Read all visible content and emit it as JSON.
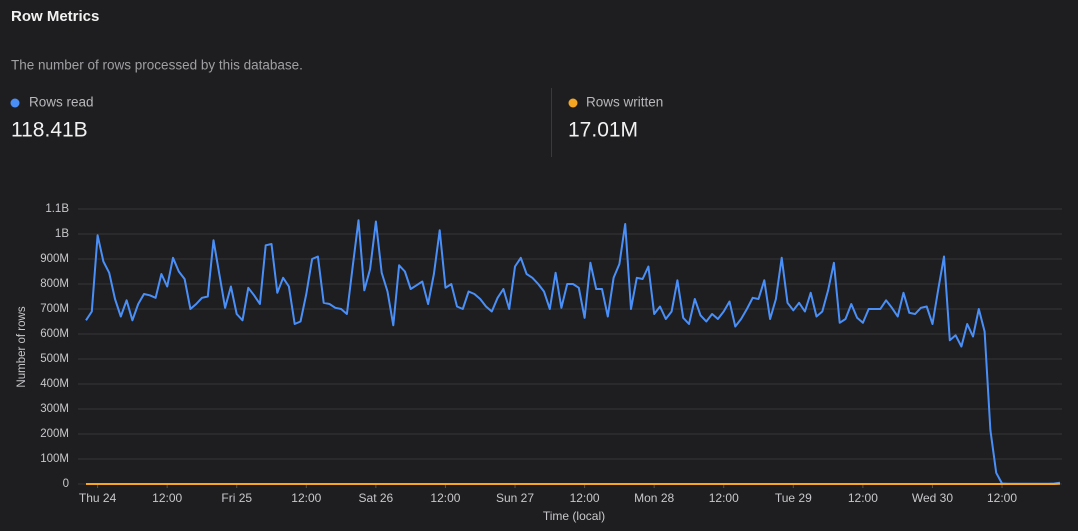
{
  "header": {
    "title": "Row Metrics",
    "subtitle": "The number of rows processed by this database."
  },
  "stats": [
    {
      "label": "Rows read",
      "value": "118.41B"
    },
    {
      "label": "Rows written",
      "value": "17.01M"
    }
  ],
  "chart_data": {
    "type": "line",
    "x_label": "Time (local)",
    "y_label": "Number of rows",
    "x": [
      -2,
      -1,
      0,
      1,
      2,
      3,
      4,
      5,
      6,
      7,
      8,
      9,
      10,
      11,
      12,
      13,
      14,
      15,
      16,
      17,
      18,
      19,
      20,
      21,
      22,
      23,
      24,
      25,
      26,
      27,
      28,
      29,
      30,
      31,
      32,
      33,
      34,
      35,
      36,
      37,
      38,
      39,
      40,
      41,
      42,
      43,
      44,
      45,
      46,
      47,
      48,
      49,
      50,
      51,
      52,
      53,
      54,
      55,
      56,
      57,
      58,
      59,
      60,
      61,
      62,
      63,
      64,
      65,
      66,
      67,
      68,
      69,
      70,
      71,
      72,
      73,
      74,
      75,
      76,
      77,
      78,
      79,
      80,
      81,
      82,
      83,
      84,
      85,
      86,
      87,
      88,
      89,
      90,
      91,
      92,
      93,
      94,
      95,
      96,
      97,
      98,
      99,
      100,
      101,
      102,
      103,
      104,
      105,
      106,
      107,
      108,
      109,
      110,
      111,
      112,
      113,
      114,
      115,
      116,
      117,
      118,
      119,
      120,
      121,
      122,
      123,
      124,
      125,
      126,
      127,
      128,
      129,
      130,
      131,
      132,
      133,
      134,
      135,
      136,
      137,
      138,
      139,
      140,
      141,
      142,
      143,
      144,
      145,
      146,
      147,
      148,
      149,
      150,
      151,
      152,
      153,
      154,
      155,
      156,
      157,
      158,
      159,
      160,
      161,
      162,
      163,
      164,
      165,
      166
    ],
    "series": [
      {
        "name": "Rows read",
        "color": "#4a8ff7",
        "values": [
          655000000,
          690000000,
          995000000,
          890000000,
          845000000,
          740000000,
          670000000,
          735000000,
          655000000,
          720000000,
          760000000,
          755000000,
          745000000,
          840000000,
          790000000,
          905000000,
          850000000,
          820000000,
          700000000,
          720000000,
          745000000,
          750000000,
          975000000,
          840000000,
          705000000,
          790000000,
          680000000,
          655000000,
          785000000,
          755000000,
          720000000,
          955000000,
          960000000,
          765000000,
          825000000,
          790000000,
          640000000,
          650000000,
          760000000,
          900000000,
          910000000,
          725000000,
          720000000,
          705000000,
          700000000,
          680000000,
          870000000,
          1055000000,
          775000000,
          860000000,
          1050000000,
          845000000,
          770000000,
          635000000,
          875000000,
          850000000,
          780000000,
          795000000,
          810000000,
          720000000,
          840000000,
          1015000000,
          785000000,
          800000000,
          710000000,
          700000000,
          770000000,
          760000000,
          740000000,
          710000000,
          690000000,
          745000000,
          780000000,
          700000000,
          870000000,
          905000000,
          840000000,
          825000000,
          800000000,
          770000000,
          700000000,
          845000000,
          705000000,
          800000000,
          800000000,
          785000000,
          665000000,
          885000000,
          780000000,
          780000000,
          670000000,
          825000000,
          880000000,
          1040000000,
          700000000,
          825000000,
          820000000,
          870000000,
          680000000,
          710000000,
          660000000,
          690000000,
          815000000,
          665000000,
          640000000,
          740000000,
          675000000,
          650000000,
          680000000,
          660000000,
          690000000,
          730000000,
          630000000,
          660000000,
          700000000,
          745000000,
          740000000,
          815000000,
          660000000,
          740000000,
          905000000,
          725000000,
          695000000,
          725000000,
          690000000,
          765000000,
          670000000,
          690000000,
          775000000,
          885000000,
          645000000,
          660000000,
          720000000,
          665000000,
          645000000,
          700000000,
          700000000,
          700000000,
          735000000,
          705000000,
          670000000,
          765000000,
          685000000,
          680000000,
          705000000,
          710000000,
          640000000,
          780000000,
          910000000,
          575000000,
          595000000,
          550000000,
          640000000,
          590000000,
          700000000,
          610000000,
          215000000,
          45000000,
          2000000,
          1000000,
          1000000,
          1000000,
          1000000,
          1000000,
          1000000,
          1000000,
          1000000,
          2000000,
          5000000
        ]
      },
      {
        "name": "Rows written",
        "color": "#f5a623",
        "values": [
          100000,
          100000,
          100000,
          100000,
          100000,
          100000,
          100000,
          100000,
          100000,
          100000,
          100000,
          100000,
          100000,
          100000,
          100000,
          100000,
          100000,
          100000,
          100000,
          100000,
          100000,
          100000,
          100000,
          100000,
          100000,
          100000,
          100000,
          100000,
          100000,
          100000,
          100000,
          100000,
          100000,
          100000,
          100000,
          100000,
          100000,
          100000,
          100000,
          100000,
          100000,
          100000,
          100000,
          100000,
          100000,
          100000,
          100000,
          100000,
          100000,
          100000,
          100000,
          100000,
          100000,
          100000,
          100000,
          100000,
          100000,
          100000,
          100000,
          100000,
          100000,
          100000,
          100000,
          100000,
          100000,
          100000,
          100000,
          100000,
          100000,
          100000,
          100000,
          100000,
          100000,
          100000,
          100000,
          100000,
          100000,
          100000,
          100000,
          100000,
          100000,
          100000,
          100000,
          100000,
          100000,
          100000,
          100000,
          100000,
          100000,
          100000,
          100000,
          100000,
          100000,
          100000,
          100000,
          100000,
          100000,
          100000,
          100000,
          100000,
          100000,
          100000,
          100000,
          100000,
          100000,
          100000,
          100000,
          100000,
          100000,
          100000,
          100000,
          100000,
          100000,
          100000,
          100000,
          100000,
          100000,
          100000,
          100000,
          100000,
          100000,
          100000,
          100000,
          100000,
          100000,
          100000,
          100000,
          100000,
          100000,
          100000,
          100000,
          100000,
          100000,
          100000,
          100000,
          100000,
          100000,
          100000,
          100000,
          100000,
          100000,
          100000,
          100000,
          100000,
          100000,
          100000,
          100000,
          100000,
          100000,
          100000,
          100000,
          100000,
          100000,
          100000,
          100000,
          100000,
          100000,
          100000,
          100000,
          100000,
          100000,
          100000,
          100000,
          100000,
          100000,
          100000,
          100000,
          100000,
          1000000
        ]
      }
    ],
    "xlim": [
      -2,
      166
    ],
    "xticks": [
      {
        "value": 0,
        "label": "Thu 24"
      },
      {
        "value": 12,
        "label": "12:00"
      },
      {
        "value": 24,
        "label": "Fri 25"
      },
      {
        "value": 36,
        "label": "12:00"
      },
      {
        "value": 48,
        "label": "Sat 26"
      },
      {
        "value": 60,
        "label": "12:00"
      },
      {
        "value": 72,
        "label": "Sun 27"
      },
      {
        "value": 84,
        "label": "12:00"
      },
      {
        "value": 96,
        "label": "Mon 28"
      },
      {
        "value": 108,
        "label": "12:00"
      },
      {
        "value": 120,
        "label": "Tue 29"
      },
      {
        "value": 132,
        "label": "12:00"
      },
      {
        "value": 144,
        "label": "Wed 30"
      },
      {
        "value": 156,
        "label": "12:00"
      }
    ],
    "ylim": [
      0,
      1100000000
    ],
    "yticks": [
      0,
      {
        "value": 100000000,
        "label": "100M"
      },
      {
        "value": 200000000,
        "label": "200M"
      },
      {
        "value": 300000000,
        "label": "300M"
      },
      {
        "value": 400000000,
        "label": "400M"
      },
      {
        "value": 500000000,
        "label": "500M"
      },
      {
        "value": 600000000,
        "label": "600M"
      },
      {
        "value": 700000000,
        "label": "700M"
      },
      {
        "value": 800000000,
        "label": "800M"
      },
      {
        "value": 900000000,
        "label": "900M"
      },
      {
        "value": 1000000000,
        "label": "1B"
      },
      {
        "value": 1100000000,
        "label": "1.1B"
      }
    ],
    "grid": true
  }
}
